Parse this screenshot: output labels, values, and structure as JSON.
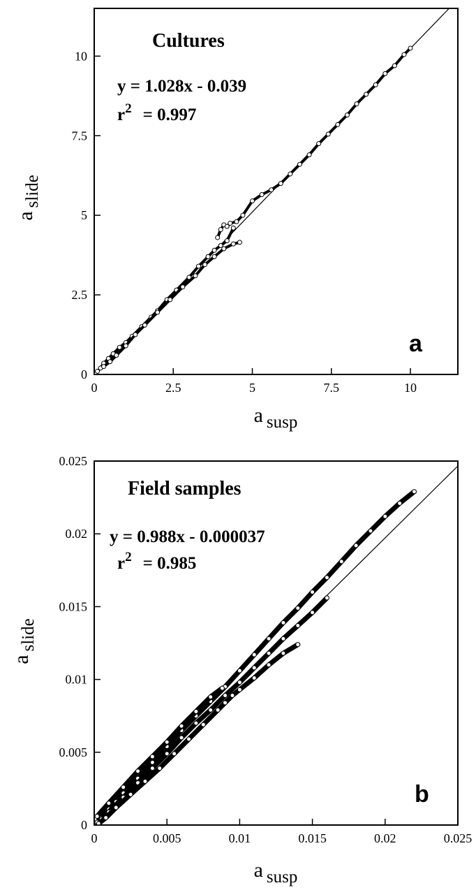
{
  "chart_data": [
    {
      "type": "scatter",
      "title": "Cultures",
      "panel_label": "a",
      "equation": "y  =  1.028x  -  0.039",
      "r2_prefix": "r",
      "r2_sup": "2",
      "r2_value": "=  0.997",
      "xlabel_main": "a",
      "xlabel_sub": "susp",
      "ylabel_main": "a",
      "ylabel_sub": "slide",
      "xlim": [
        0,
        11.5
      ],
      "ylim": [
        0,
        11.5
      ],
      "xticks": [
        0,
        2.5,
        5,
        7.5,
        10
      ],
      "xtick_labels": [
        "0",
        "2.5",
        "5",
        "7.5",
        "10"
      ],
      "yticks": [
        0,
        2.5,
        5,
        7.5,
        10
      ],
      "ytick_labels": [
        "0",
        "2.5",
        "5",
        "7.5",
        "10"
      ],
      "grid": false,
      "fit": {
        "slope": 1.028,
        "intercept": -0.039,
        "x_range": [
          0,
          11.5
        ]
      },
      "series": [
        {
          "x": [
            0.05,
            0.1,
            0.2,
            0.3,
            0.45,
            0.6,
            0.8,
            1.0,
            1.2,
            1.5,
            1.8,
            2.0,
            2.3,
            2.6,
            3.0,
            3.3,
            3.6,
            3.8,
            4.0,
            4.2,
            4.4
          ],
          "y": [
            0.02,
            0.1,
            0.2,
            0.35,
            0.5,
            0.65,
            0.85,
            1.0,
            1.2,
            1.5,
            1.8,
            2.0,
            2.35,
            2.65,
            3.05,
            3.4,
            3.7,
            3.9,
            4.05,
            4.2,
            4.6
          ]
        },
        {
          "x": [
            3.9,
            4.0,
            4.1,
            4.2,
            4.3,
            4.5,
            4.7,
            5.0,
            5.3,
            5.6,
            5.9,
            6.2,
            6.5,
            6.8,
            7.1,
            7.4,
            7.7,
            8.0,
            8.3,
            8.6,
            8.9,
            9.2,
            9.5,
            9.8,
            10.0
          ],
          "y": [
            4.3,
            4.55,
            4.7,
            4.65,
            4.75,
            4.8,
            5.0,
            5.45,
            5.65,
            5.8,
            6.0,
            6.3,
            6.6,
            6.9,
            7.25,
            7.55,
            7.85,
            8.15,
            8.5,
            8.8,
            9.1,
            9.45,
            9.7,
            10.05,
            10.25
          ]
        },
        {
          "x": [
            0.3,
            0.5,
            0.7,
            1.0,
            1.3,
            1.6,
            2.0,
            2.4,
            2.8,
            3.2,
            3.5,
            3.8,
            4.1,
            4.4,
            4.6
          ],
          "y": [
            0.25,
            0.4,
            0.6,
            0.9,
            1.25,
            1.55,
            1.95,
            2.35,
            2.75,
            3.1,
            3.45,
            3.7,
            3.95,
            4.1,
            4.15
          ]
        }
      ]
    },
    {
      "type": "scatter",
      "title": "Field  samples",
      "panel_label": "b",
      "equation": "y  =  0.988x  -  0.000037",
      "r2_prefix": "r",
      "r2_sup": "2",
      "r2_value": "=  0.985",
      "xlabel_main": "a",
      "xlabel_sub": "susp",
      "ylabel_main": "a",
      "ylabel_sub": "slide",
      "xlim": [
        0,
        0.025
      ],
      "ylim": [
        0,
        0.025
      ],
      "xticks": [
        0,
        0.005,
        0.01,
        0.015,
        0.02,
        0.025
      ],
      "xtick_labels": [
        "0",
        "0.005",
        "0.01",
        "0.015",
        "0.02",
        "0.025"
      ],
      "yticks": [
        0,
        0.005,
        0.01,
        0.015,
        0.02,
        0.025
      ],
      "ytick_labels": [
        "0",
        "0.005",
        "0.01",
        "0.015",
        "0.02",
        "0.025"
      ],
      "grid": false,
      "fit": {
        "slope": 0.988,
        "intercept": -3.7e-05,
        "x_range": [
          0,
          0.025
        ]
      },
      "series": [
        {
          "x": [
            0.0002,
            0.0005,
            0.001,
            0.0015,
            0.002,
            0.003,
            0.004,
            0.005,
            0.006,
            0.007,
            0.008,
            0.009,
            0.01,
            0.011,
            0.012,
            0.013,
            0.014,
            0.015,
            0.016,
            0.017,
            0.018,
            0.019,
            0.02,
            0.021,
            0.022
          ],
          "y": [
            0.0002,
            0.0005,
            0.0011,
            0.0016,
            0.0022,
            0.0032,
            0.0043,
            0.0054,
            0.0065,
            0.0075,
            0.0085,
            0.0095,
            0.0106,
            0.0117,
            0.0128,
            0.0139,
            0.0149,
            0.016,
            0.017,
            0.0181,
            0.0192,
            0.0202,
            0.0212,
            0.0221,
            0.0229
          ]
        },
        {
          "x": [
            0.0005,
            0.001,
            0.002,
            0.003,
            0.004,
            0.005,
            0.006,
            0.007,
            0.008,
            0.009,
            0.01,
            0.011,
            0.012,
            0.013,
            0.014,
            0.015,
            0.016
          ],
          "y": [
            0.0004,
            0.0009,
            0.0019,
            0.0029,
            0.0039,
            0.0049,
            0.006,
            0.007,
            0.0079,
            0.0089,
            0.0098,
            0.0108,
            0.0118,
            0.0128,
            0.0137,
            0.0146,
            0.0156
          ]
        },
        {
          "x": [
            0.0003,
            0.0008,
            0.0015,
            0.0025,
            0.0035,
            0.0045,
            0.0055,
            0.0065,
            0.0075,
            0.0085,
            0.009,
            0.0095,
            0.01,
            0.011,
            0.012,
            0.013,
            0.014
          ],
          "y": [
            0.0001,
            0.0005,
            0.0012,
            0.0021,
            0.003,
            0.0039,
            0.0049,
            0.0059,
            0.0069,
            0.0079,
            0.0084,
            0.0089,
            0.0093,
            0.0101,
            0.011,
            0.0118,
            0.0124
          ]
        },
        {
          "x": [
            0.0002,
            0.001,
            0.002,
            0.003,
            0.004,
            0.005,
            0.006,
            0.007,
            0.008,
            0.0088
          ],
          "y": [
            0.0006,
            0.0015,
            0.0026,
            0.0037,
            0.0047,
            0.0057,
            0.0068,
            0.0078,
            0.0088,
            0.0094
          ]
        }
      ]
    }
  ]
}
